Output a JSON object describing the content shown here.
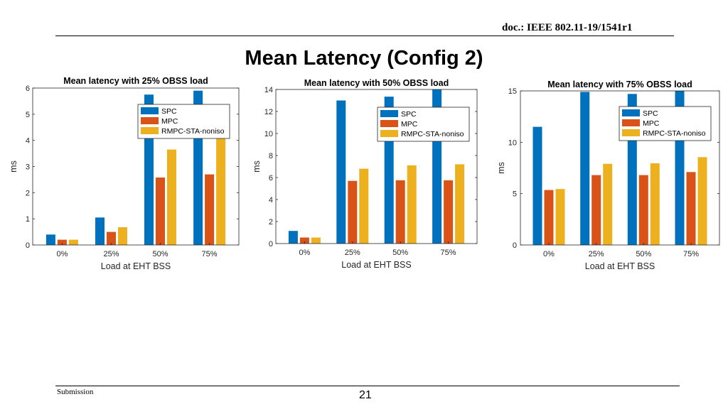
{
  "header": {
    "doc_id": "doc.: IEEE 802.11-19/1541r1"
  },
  "slide": {
    "title": "Mean Latency (Config 2)"
  },
  "footer": {
    "left": "Submission",
    "page": "21"
  },
  "colors": {
    "SPC": "#0072BD",
    "MPC": "#D95319",
    "RMPC-STA-noniso": "#EDB120"
  },
  "chart_data": [
    {
      "type": "bar",
      "title": "Mean latency with 25% OBSS load",
      "xlabel": "Load at EHT BSS",
      "ylabel": "ms",
      "categories": [
        "0%",
        "25%",
        "50%",
        "75%"
      ],
      "ylim": [
        0,
        6
      ],
      "yticks": [
        "0",
        "1",
        "2",
        "3",
        "4",
        "5",
        "6"
      ],
      "legend": "top-right",
      "series": [
        {
          "name": "SPC",
          "values": [
            0.4,
            1.05,
            5.75,
            5.9
          ]
        },
        {
          "name": "MPC",
          "values": [
            0.2,
            0.5,
            2.58,
            2.7
          ]
        },
        {
          "name": "RMPC-STA-noniso",
          "values": [
            0.2,
            0.68,
            3.65,
            4.07
          ]
        }
      ]
    },
    {
      "type": "bar",
      "title": "Mean latency with 50% OBSS load",
      "xlabel": "Load at EHT BSS",
      "ylabel": "ms",
      "categories": [
        "0%",
        "25%",
        "50%",
        "75%"
      ],
      "ylim": [
        0,
        14
      ],
      "yticks": [
        "0",
        "2",
        "4",
        "6",
        "8",
        "10",
        "12",
        "14"
      ],
      "legend": "top-right",
      "series": [
        {
          "name": "SPC",
          "values": [
            1.15,
            13.0,
            13.35,
            14.0
          ]
        },
        {
          "name": "MPC",
          "values": [
            0.55,
            5.7,
            5.75,
            5.75
          ]
        },
        {
          "name": "RMPC-STA-noniso",
          "values": [
            0.55,
            6.8,
            7.1,
            7.2
          ]
        }
      ]
    },
    {
      "type": "bar",
      "title": "Mean latency with 75% OBSS load",
      "xlabel": "Load at EHT BSS",
      "ylabel": "ms",
      "categories": [
        "0%",
        "25%",
        "50%",
        "75%"
      ],
      "ylim": [
        0,
        15
      ],
      "yticks": [
        "0",
        "5",
        "10",
        "15"
      ],
      "legend": "top-right",
      "series": [
        {
          "name": "SPC",
          "values": [
            11.5,
            14.9,
            14.7,
            15.0
          ]
        },
        {
          "name": "MPC",
          "values": [
            5.35,
            6.8,
            6.8,
            7.1
          ]
        },
        {
          "name": "RMPC-STA-noniso",
          "values": [
            5.45,
            7.9,
            7.95,
            8.55
          ]
        }
      ]
    }
  ]
}
